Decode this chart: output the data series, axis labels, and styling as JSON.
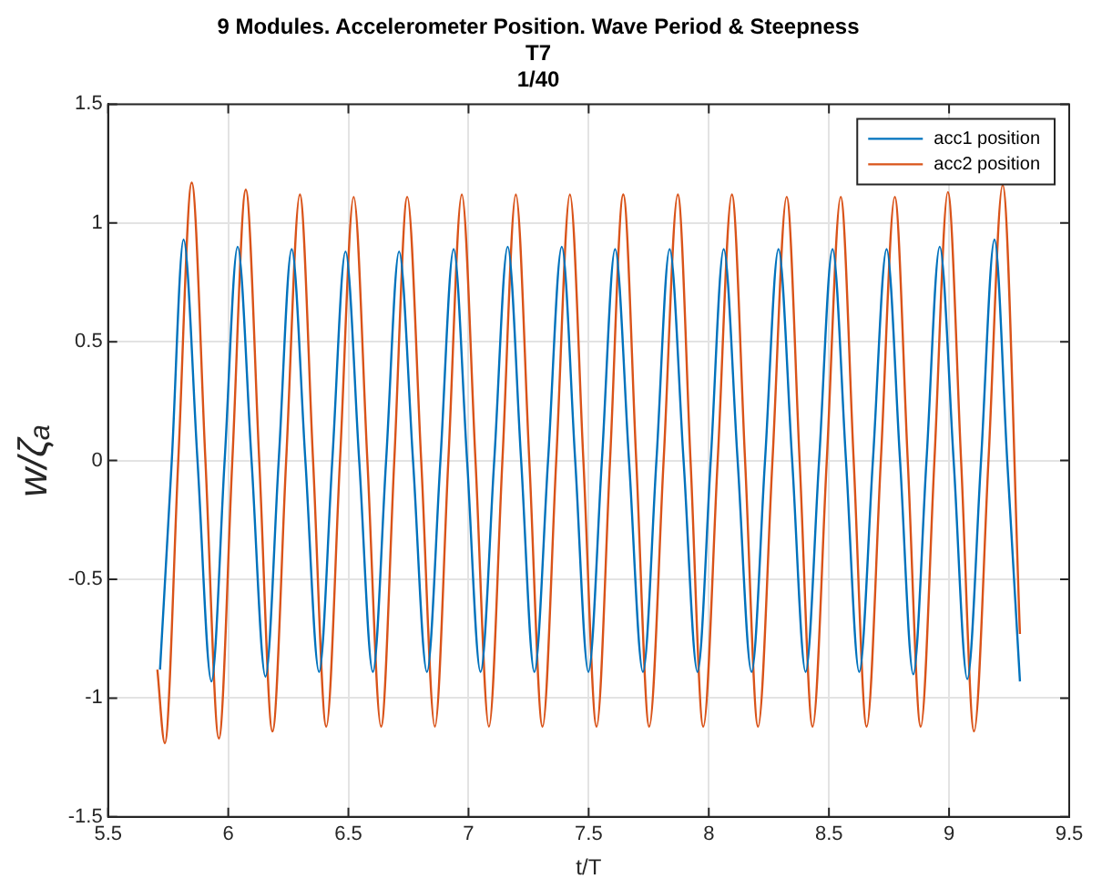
{
  "chart_data": {
    "type": "line",
    "title": "9 Modules. Accelerometer Position. Wave Period & Steepness\nT7\n1/40",
    "xlabel": "t/T",
    "ylabel": "w/ζₐ",
    "xlim": [
      5.5,
      9.5
    ],
    "xticks": [
      5.5,
      6,
      6.5,
      7,
      7.5,
      8,
      8.5,
      9,
      9.5
    ],
    "ylim": [
      -1.5,
      1.5
    ],
    "yticks": [
      -1.5,
      -1,
      -0.5,
      0,
      0.5,
      1,
      1.5
    ],
    "grid": true,
    "legend": "top right",
    "marker": "none",
    "line_style": "solid",
    "series": [
      {
        "name": "acc1 position",
        "color": "#0072bd",
        "x": [
          5.716,
          5.765,
          5.814,
          5.872,
          5.93,
          5.985,
          6.039,
          6.097,
          6.155,
          6.21,
          6.264,
          6.321,
          6.378,
          6.433,
          6.488,
          6.545,
          6.602,
          6.657,
          6.711,
          6.769,
          6.827,
          6.883,
          6.938,
          6.994,
          7.05,
          7.107,
          7.163,
          7.219,
          7.274,
          7.331,
          7.388,
          7.444,
          7.499,
          7.555,
          7.61,
          7.668,
          7.726,
          7.782,
          7.837,
          7.895,
          7.953,
          8.008,
          8.062,
          8.12,
          8.178,
          8.234,
          8.29,
          8.347,
          8.403,
          8.459,
          8.515,
          8.571,
          8.626,
          8.683,
          8.74,
          8.796,
          8.851,
          8.906,
          8.961,
          9.019,
          9.076,
          9.133,
          9.189,
          9.242,
          9.295
        ],
        "values": [
          -0.88,
          0,
          0.93,
          0,
          -0.93,
          0,
          0.9,
          0,
          -0.91,
          0,
          0.89,
          0,
          -0.89,
          0,
          0.88,
          0,
          -0.89,
          0,
          0.88,
          0,
          -0.89,
          0,
          0.89,
          0,
          -0.89,
          0,
          0.9,
          0,
          -0.89,
          0,
          0.9,
          0,
          -0.89,
          0,
          0.89,
          0,
          -0.89,
          0,
          0.89,
          0,
          -0.89,
          0,
          0.89,
          0,
          -0.89,
          0,
          0.89,
          0,
          -0.89,
          0,
          0.89,
          0,
          -0.89,
          0,
          0.89,
          0,
          -0.9,
          0,
          0.9,
          0,
          -0.92,
          0,
          0.93,
          0,
          -0.93
        ]
      },
      {
        "name": "acc2 position",
        "color": "#d95319",
        "x": [
          5.705,
          5.736,
          5.792,
          5.848,
          5.905,
          5.961,
          6.017,
          6.073,
          6.129,
          6.184,
          6.241,
          6.298,
          6.353,
          6.408,
          6.465,
          6.522,
          6.579,
          6.636,
          6.691,
          6.745,
          6.803,
          6.86,
          6.916,
          6.972,
          7.029,
          7.085,
          7.141,
          7.197,
          7.253,
          7.308,
          7.365,
          7.422,
          7.478,
          7.533,
          7.589,
          7.644,
          7.698,
          7.752,
          7.812,
          7.871,
          7.924,
          7.977,
          8.037,
          8.096,
          8.151,
          8.205,
          8.265,
          8.324,
          8.378,
          8.432,
          8.491,
          8.549,
          8.603,
          8.657,
          8.716,
          8.774,
          8.828,
          8.882,
          8.939,
          8.995,
          9.05,
          9.104,
          9.164,
          9.223,
          9.295
        ],
        "values": [
          -0.88,
          -1.19,
          0,
          1.17,
          0,
          -1.17,
          0,
          1.14,
          0,
          -1.14,
          0,
          1.12,
          0,
          -1.12,
          0,
          1.11,
          0,
          -1.12,
          0,
          1.11,
          0,
          -1.12,
          0,
          1.12,
          0,
          -1.12,
          0,
          1.12,
          0,
          -1.12,
          0,
          1.12,
          0,
          -1.12,
          0,
          1.12,
          0,
          -1.12,
          0,
          1.12,
          0,
          -1.12,
          0,
          1.12,
          0,
          -1.12,
          0,
          1.11,
          0,
          -1.12,
          0,
          1.11,
          0,
          -1.12,
          0,
          1.11,
          0,
          -1.12,
          0,
          1.13,
          0,
          -1.14,
          0,
          1.16,
          -0.73
        ]
      }
    ]
  }
}
